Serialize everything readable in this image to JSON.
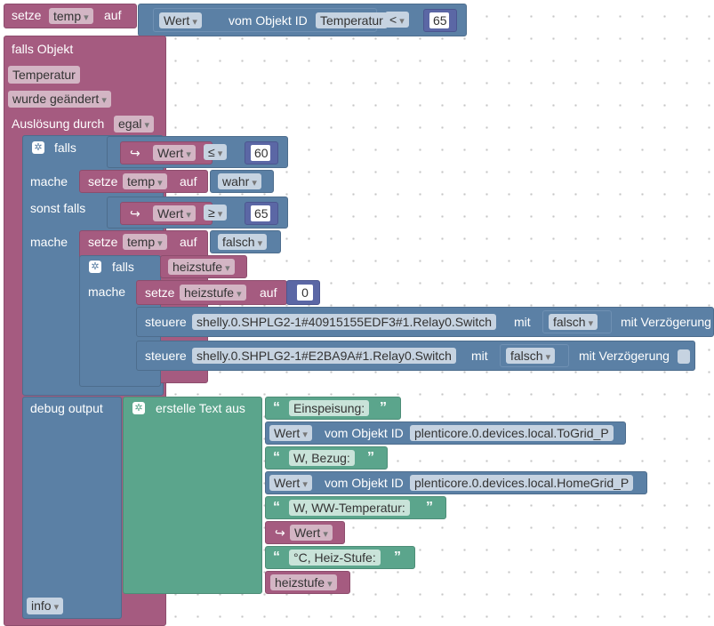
{
  "top": {
    "set_kw": "setze",
    "var": "temp",
    "auf_kw": "auf",
    "wert": "Wert",
    "vom_objekt_id": "vom Objekt ID",
    "object": "Temperatur",
    "op": "<",
    "value": "65"
  },
  "trigger": {
    "title": "falls Objekt",
    "object": "Temperatur",
    "event": "wurde geändert",
    "ausloesung_label": "Auslösung durch",
    "ausloesung_value": "egal"
  },
  "if1": {
    "falls": "falls",
    "cond1_var": "Wert",
    "cond1_op": "≤",
    "cond1_val": "60",
    "mache": "mache",
    "do1_set": "setze",
    "do1_var": "temp",
    "do1_auf": "auf",
    "do1_val": "wahr",
    "sonst_falls": "sonst falls",
    "cond2_var": "Wert",
    "cond2_op": "≥",
    "cond2_val": "65",
    "mache2": "mache",
    "do2_set": "setze",
    "do2_var": "temp",
    "do2_auf": "auf",
    "do2_val": "falsch"
  },
  "if2": {
    "falls": "falls",
    "cond": "heizstufe",
    "mache": "mache",
    "set_kw": "setze",
    "set_var": "heizstufe",
    "set_auf": "auf",
    "set_val": "0",
    "steuere": [
      {
        "kw": "steuere",
        "id": "shelly.0.SHPLG2-1#40915155EDF3#1.Relay0.Switch",
        "mit": "mit",
        "value": "falsch",
        "delay": "mit Verzögerung"
      },
      {
        "kw": "steuere",
        "id": "shelly.0.SHPLG2-1#E2BA9A#1.Relay0.Switch",
        "mit": "mit",
        "value": "falsch",
        "delay": "mit Verzögerung"
      }
    ]
  },
  "debug": {
    "label": "debug output",
    "create_text": "erstelle Text aus",
    "level": "info",
    "parts": {
      "t1": "Einspeisung:",
      "w1": "Wert",
      "v1": "vom Objekt ID",
      "o1": "plenticore.0.devices.local.ToGrid_P",
      "t2": "W, Bezug:",
      "w2": "Wert",
      "v2": "vom Objekt ID",
      "o2": "plenticore.0.devices.local.HomeGrid_P",
      "t3": "W, WW-Temperatur:",
      "w3": "Wert",
      "t4": "°C, Heiz-Stufe:",
      "h4": "heizstufe"
    }
  },
  "colors": {
    "variable": "#a55b80",
    "list": "#5b80a5",
    "text": "#5ba58c"
  }
}
